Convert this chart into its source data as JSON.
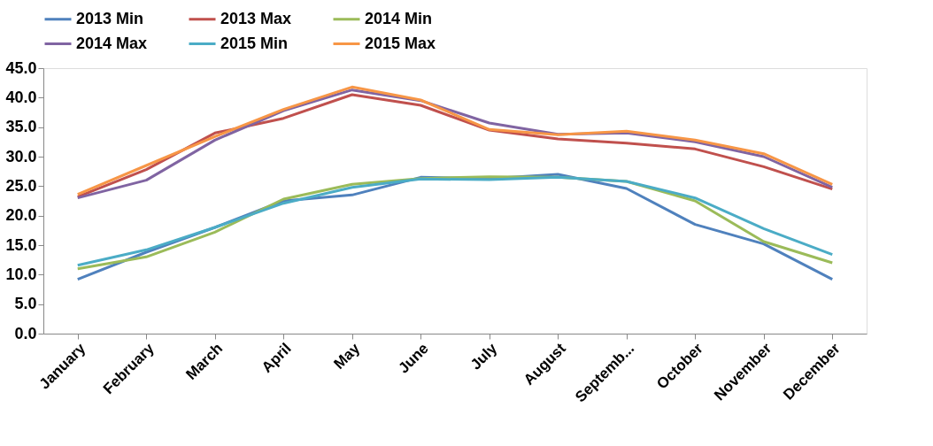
{
  "chart_data": {
    "type": "line",
    "categories": [
      "January",
      "February",
      "March",
      "April",
      "May",
      "June",
      "July",
      "August",
      "Septemb...",
      "October",
      "November",
      "December"
    ],
    "series": [
      {
        "name": "2013 Min",
        "color": "#4f81bd",
        "values": [
          9.2,
          13.8,
          18.0,
          22.5,
          23.5,
          26.5,
          26.3,
          27.0,
          24.6,
          18.5,
          15.2,
          9.2
        ]
      },
      {
        "name": "2013 Max",
        "color": "#c0504d",
        "values": [
          23.2,
          27.8,
          34.0,
          36.5,
          40.5,
          38.7,
          34.5,
          33.0,
          32.3,
          31.3,
          28.3,
          24.5
        ]
      },
      {
        "name": "2014 Min",
        "color": "#9bbb59",
        "values": [
          11.0,
          13.0,
          17.2,
          22.8,
          25.3,
          26.3,
          26.6,
          26.5,
          25.8,
          22.5,
          15.6,
          12.0
        ]
      },
      {
        "name": "2014 Max",
        "color": "#8064a2",
        "values": [
          23.0,
          26.0,
          32.8,
          37.8,
          41.3,
          39.5,
          35.7,
          33.8,
          34.0,
          32.5,
          30.0,
          24.8
        ]
      },
      {
        "name": "2015 Min",
        "color": "#4bacc6",
        "values": [
          11.6,
          14.2,
          18.0,
          22.1,
          24.8,
          26.2,
          26.1,
          26.5,
          25.8,
          23.0,
          17.8,
          13.4
        ]
      },
      {
        "name": "2015 Max",
        "color": "#f79646",
        "values": [
          23.6,
          28.5,
          33.4,
          38.0,
          41.8,
          39.6,
          34.6,
          33.7,
          34.3,
          32.8,
          30.5,
          25.3
        ]
      }
    ],
    "ylim": [
      0,
      45
    ],
    "yticks": [
      {
        "value": 0,
        "label": "0.0"
      },
      {
        "value": 5,
        "label": "5.0"
      },
      {
        "value": 10,
        "label": "10.0"
      },
      {
        "value": 15,
        "label": "15.0"
      },
      {
        "value": 20,
        "label": "20.0"
      },
      {
        "value": 25,
        "label": "25.0"
      },
      {
        "value": 30,
        "label": "30.0"
      },
      {
        "value": 35,
        "label": "35.0"
      },
      {
        "value": 40,
        "label": "40.0"
      },
      {
        "value": 45,
        "label": "45.0"
      }
    ],
    "grid": false,
    "legend": "top",
    "marker": "none",
    "line_style": "solid"
  }
}
